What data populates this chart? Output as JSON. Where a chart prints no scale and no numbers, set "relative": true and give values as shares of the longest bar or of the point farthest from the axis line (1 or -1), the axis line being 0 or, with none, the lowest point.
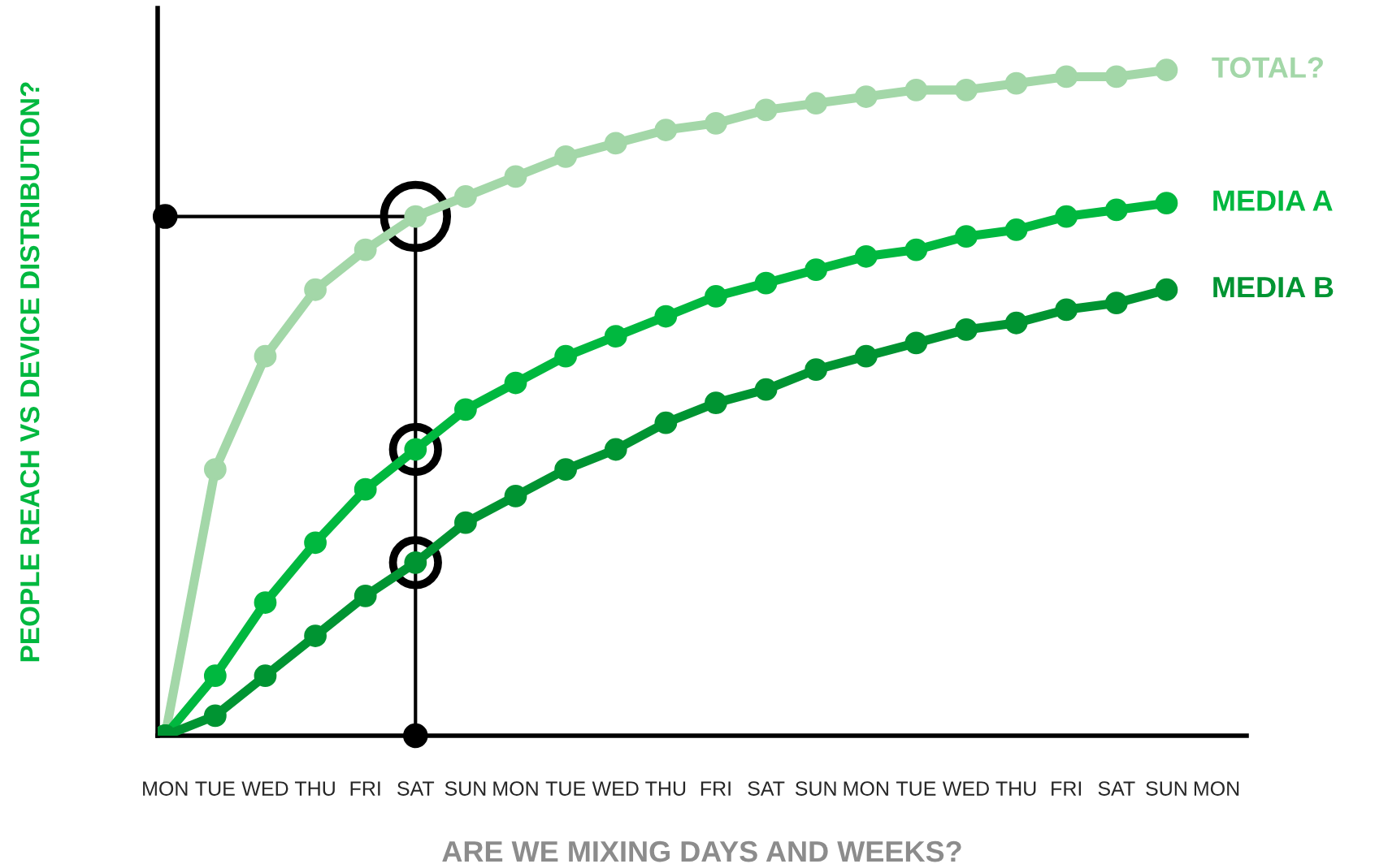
{
  "chart_data": {
    "type": "line",
    "relative": true,
    "marker": "circle",
    "legend": false,
    "grid": false,
    "xlabel": "ARE WE MIXING DAYS AND WEEKS?",
    "ylabel": "PEOPLE REACH VS DEVICE DISTRIBUTION?",
    "categories": [
      "MON",
      "TUE",
      "WED",
      "THU",
      "FRI",
      "SAT",
      "SUN",
      "MON",
      "TUE",
      "WED",
      "THU",
      "FRI",
      "SAT",
      "SUN",
      "MON",
      "TUE",
      "WED",
      "THU",
      "FRI",
      "SAT",
      "SUN",
      "MON"
    ],
    "series": [
      {
        "name": "TOTAL?",
        "color": "#a3d7a8",
        "values": [
          0,
          0.4,
          0.57,
          0.67,
          0.73,
          0.78,
          0.81,
          0.84,
          0.87,
          0.89,
          0.91,
          0.92,
          0.94,
          0.95,
          0.96,
          0.97,
          0.97,
          0.98,
          0.99,
          0.99,
          1.0,
          null
        ]
      },
      {
        "name": "MEDIA A",
        "color": "#00b83f",
        "values": [
          0,
          0.09,
          0.2,
          0.29,
          0.37,
          0.43,
          0.49,
          0.53,
          0.57,
          0.6,
          0.63,
          0.66,
          0.68,
          0.7,
          0.72,
          0.73,
          0.75,
          0.76,
          0.78,
          0.79,
          0.8,
          null
        ]
      },
      {
        "name": "MEDIA B",
        "color": "#009432",
        "values": [
          0,
          0.03,
          0.09,
          0.15,
          0.21,
          0.26,
          0.32,
          0.36,
          0.4,
          0.43,
          0.47,
          0.5,
          0.52,
          0.55,
          0.57,
          0.59,
          0.61,
          0.62,
          0.64,
          0.65,
          0.67,
          null
        ]
      }
    ],
    "ref_lines": [
      {
        "axis": "x",
        "value": "SAT",
        "color": "#000000"
      },
      {
        "axis": "y",
        "value": 0.78,
        "color": "#000000"
      }
    ]
  }
}
